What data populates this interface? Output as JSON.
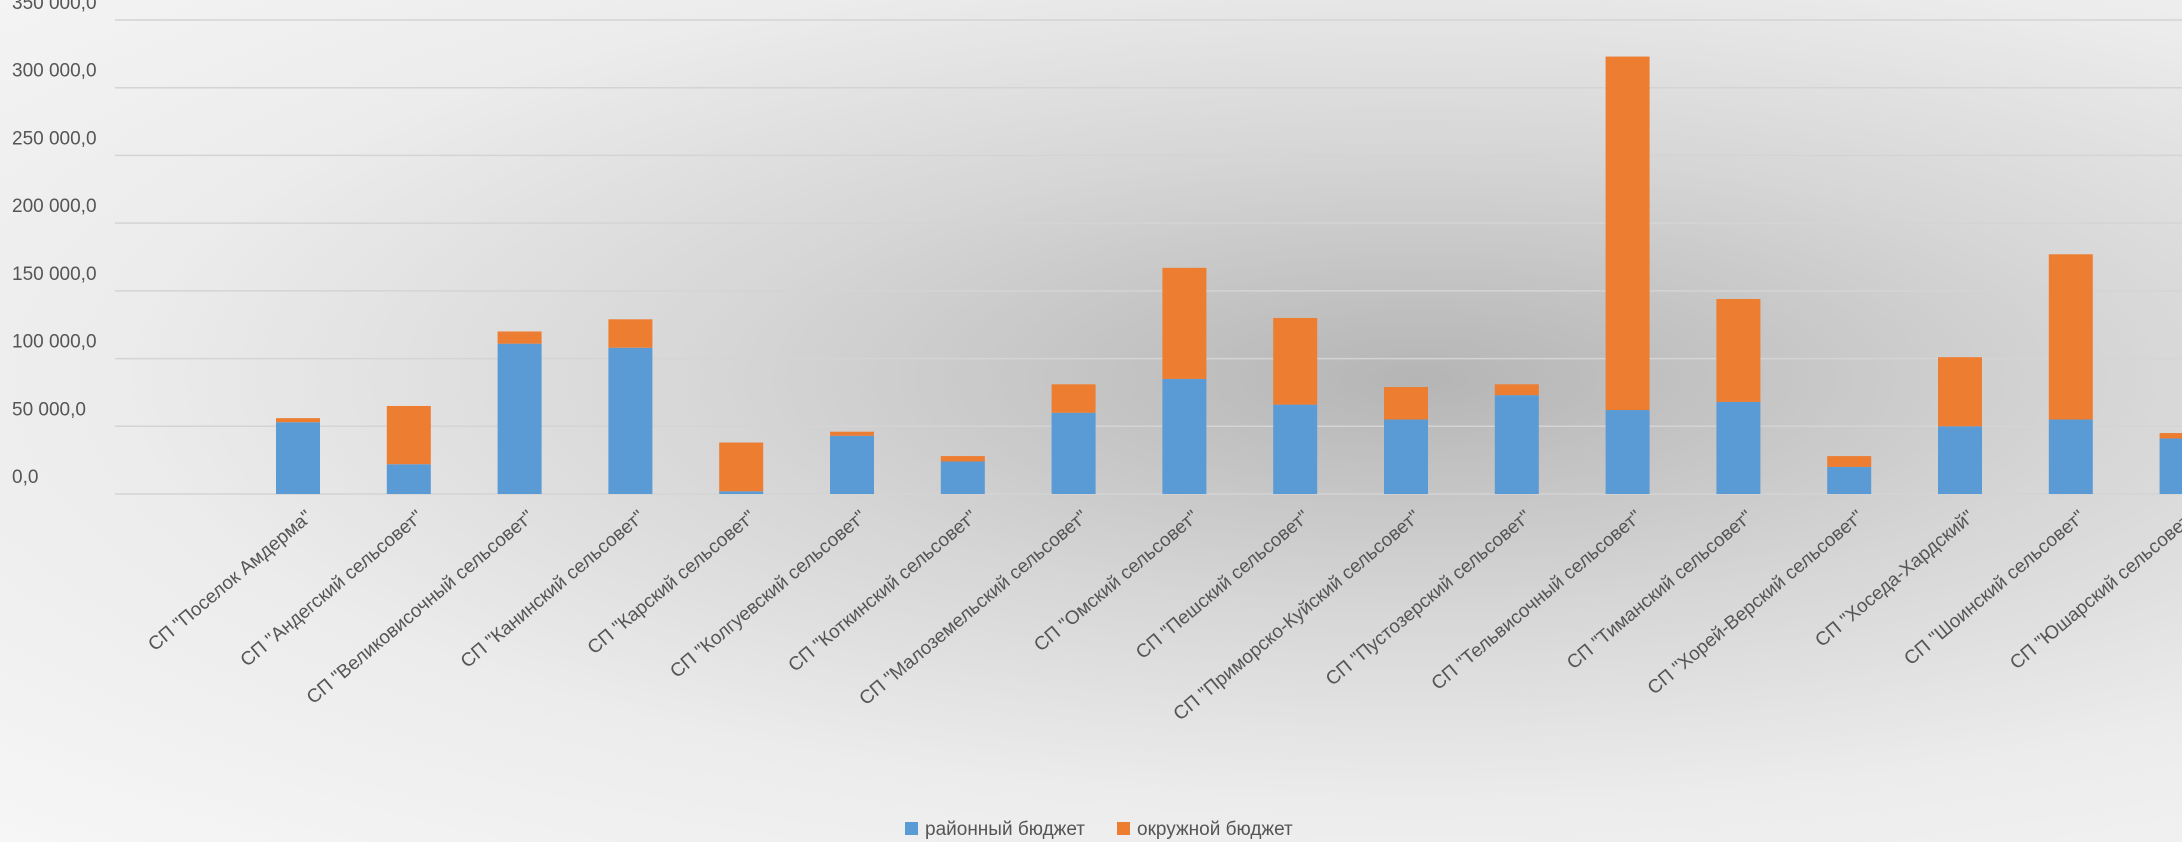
{
  "chart_data": {
    "type": "stacked-bar",
    "categories": [
      "СП \"Поселок Амдерма\"",
      "СП \"Андегский сельсовет\"",
      "СП \"Великовисочный сельсовет\"",
      "СП \"Канинский сельсовет\"",
      "СП \"Карский сельсовет\"",
      "СП \"Колгуевский сельсовет\"",
      "СП \"Коткинский сельсовет\"",
      "СП \"Малоземельский сельсовет\"",
      "СП \"Омский сельсовет\"",
      "СП \"Пешский сельсовет\"",
      "СП \"Приморско-Куйский сельсовет\"",
      "СП \"Пустозерский сельсовет\"",
      "СП \"Тельвисочный сельсовет\"",
      "СП \"Тиманский сельсовет\"",
      "СП \"Хорей-Верский сельсовет\"",
      "СП \"Хоседа-Хардский\"",
      "СП \"Шоинский сельсовет\"",
      "СП \"Юшарский сельсовет\""
    ],
    "series": [
      {
        "name": "районный бюджет",
        "color": "#5b9bd5",
        "values": [
          53000,
          22000,
          111000,
          108000,
          2000,
          43000,
          24000,
          60000,
          85000,
          66000,
          55000,
          73000,
          62000,
          68000,
          20000,
          50000,
          55000,
          41000
        ]
      },
      {
        "name": "окружной бюджет",
        "color": "#ed7d31",
        "values": [
          3000,
          43000,
          9000,
          21000,
          36000,
          3000,
          4000,
          21000,
          82000,
          64000,
          24000,
          8000,
          261000,
          76000,
          8000,
          51000,
          122000,
          4000
        ]
      }
    ],
    "ylim": [
      0,
      350000
    ],
    "yticks": [
      {
        "value": 0,
        "label": "0,0"
      },
      {
        "value": 50000,
        "label": "50 000,0"
      },
      {
        "value": 100000,
        "label": "100 000,0"
      },
      {
        "value": 150000,
        "label": "150 000,0"
      },
      {
        "value": 200000,
        "label": "200 000,0"
      },
      {
        "value": 250000,
        "label": "250 000,0"
      },
      {
        "value": 300000,
        "label": "300 000,0"
      },
      {
        "value": 350000,
        "label": "350 000,0"
      }
    ],
    "grid": true,
    "legend": "bottom"
  }
}
